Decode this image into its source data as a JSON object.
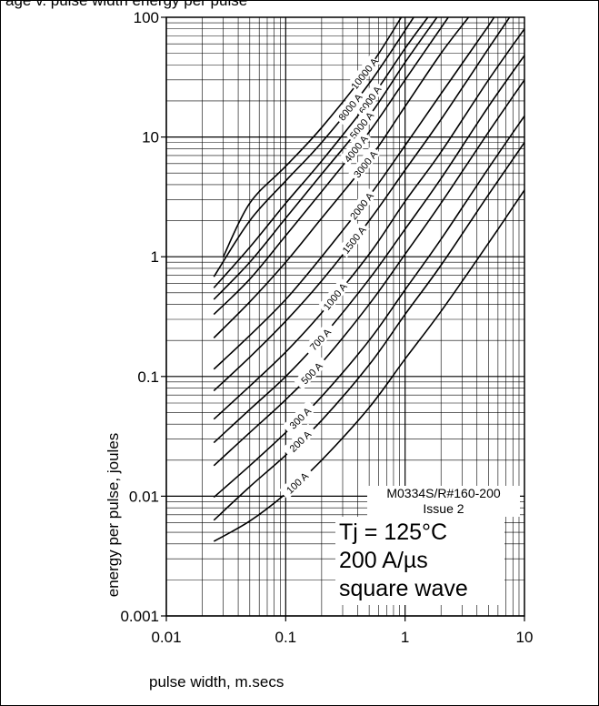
{
  "header_text": "age v. pulse width energy per pulse",
  "doc": {
    "code": "M0334S/R#160-200",
    "issue": "Issue 2"
  },
  "conditions": {
    "line1": "Tj = 125°C",
    "line2": "200 A/µs",
    "line3": "square wave"
  },
  "colors": {
    "line": "#000000",
    "background": "#ffffff"
  },
  "chart_data": {
    "type": "line",
    "xlabel": "pulse width, m.secs",
    "ylabel": "energy per pulse, joules",
    "x_scale": "log",
    "y_scale": "log",
    "xlim": [
      0.01,
      10
    ],
    "ylim": [
      0.001,
      100
    ],
    "x_ticks": [
      "0.01",
      "0.1",
      "1",
      "10"
    ],
    "y_ticks": [
      "0.001",
      "0.01",
      "0.1",
      "1",
      "10",
      "100"
    ],
    "grid": true,
    "series": [
      {
        "name": "10000 A",
        "x": [
          0.03,
          0.05,
          0.1,
          0.2,
          0.5,
          0.93
        ],
        "y": [
          1.0,
          2.8,
          5.7,
          12.0,
          38,
          100
        ]
      },
      {
        "name": "8000 A",
        "x": [
          0.025,
          0.05,
          0.1,
          0.2,
          0.5,
          1.18
        ],
        "y": [
          0.68,
          2.0,
          4.3,
          9.0,
          28,
          100
        ]
      },
      {
        "name": "6000 A",
        "x": [
          0.025,
          0.05,
          0.1,
          0.2,
          0.5,
          1.0,
          1.55
        ],
        "y": [
          0.55,
          1.2,
          2.8,
          6.3,
          20,
          55,
          100
        ]
      },
      {
        "name": "5000 A",
        "x": [
          0.025,
          0.05,
          0.1,
          0.2,
          0.5,
          1.0,
          1.85
        ],
        "y": [
          0.44,
          0.9,
          2.1,
          4.9,
          15,
          42,
          100
        ]
      },
      {
        "name": "4000 A",
        "x": [
          0.025,
          0.05,
          0.1,
          0.2,
          0.5,
          1.0,
          2.3
        ],
        "y": [
          0.33,
          0.65,
          1.5,
          3.5,
          11,
          30,
          100
        ]
      },
      {
        "name": "3000 A",
        "x": [
          0.025,
          0.05,
          0.1,
          0.2,
          0.5,
          1.0,
          2.0,
          3.4
        ],
        "y": [
          0.21,
          0.42,
          0.9,
          2.1,
          6.5,
          18,
          50,
          100
        ]
      },
      {
        "name": "2000 A",
        "x": [
          0.025,
          0.05,
          0.1,
          0.2,
          0.5,
          1.0,
          2.0,
          5.0,
          5.5
        ],
        "y": [
          0.115,
          0.22,
          0.44,
          1.0,
          3.2,
          8.5,
          23,
          85,
          100
        ]
      },
      {
        "name": "1500 A",
        "x": [
          0.025,
          0.05,
          0.1,
          0.2,
          0.5,
          1.0,
          2.0,
          5.0,
          7.5
        ],
        "y": [
          0.076,
          0.145,
          0.29,
          0.63,
          2.0,
          5.3,
          14,
          55,
          100
        ]
      },
      {
        "name": "1000 A",
        "x": [
          0.025,
          0.05,
          0.1,
          0.2,
          0.5,
          1.0,
          2.0,
          5.0,
          10.0
        ],
        "y": [
          0.044,
          0.083,
          0.16,
          0.34,
          1.05,
          2.9,
          7.5,
          30,
          80
        ]
      },
      {
        "name": "700 A",
        "x": [
          0.025,
          0.05,
          0.1,
          0.2,
          0.5,
          1.0,
          2.0,
          5.0,
          10.0
        ],
        "y": [
          0.028,
          0.053,
          0.1,
          0.21,
          0.65,
          1.7,
          4.5,
          18,
          48
        ]
      },
      {
        "name": "500 A",
        "x": [
          0.025,
          0.05,
          0.1,
          0.2,
          0.5,
          1.0,
          2.0,
          5.0,
          10.0
        ],
        "y": [
          0.018,
          0.034,
          0.064,
          0.13,
          0.4,
          1.05,
          2.8,
          11,
          30
        ]
      },
      {
        "name": "300 A",
        "x": [
          0.025,
          0.05,
          0.1,
          0.2,
          0.5,
          1.0,
          2.0,
          5.0,
          10.0
        ],
        "y": [
          0.0098,
          0.018,
          0.034,
          0.068,
          0.2,
          0.53,
          1.4,
          5.5,
          15
        ]
      },
      {
        "name": "200 A",
        "x": [
          0.025,
          0.05,
          0.1,
          0.2,
          0.5,
          1.0,
          2.0,
          5.0,
          10.0
        ],
        "y": [
          0.0063,
          0.012,
          0.022,
          0.043,
          0.125,
          0.33,
          0.85,
          3.3,
          9.0
        ]
      },
      {
        "name": "100 A",
        "x": [
          0.025,
          0.05,
          0.1,
          0.2,
          0.5,
          1.0,
          2.0,
          5.0,
          10.0
        ],
        "y": [
          0.0042,
          0.0062,
          0.0105,
          0.02,
          0.055,
          0.14,
          0.35,
          1.3,
          3.6
        ]
      }
    ]
  }
}
